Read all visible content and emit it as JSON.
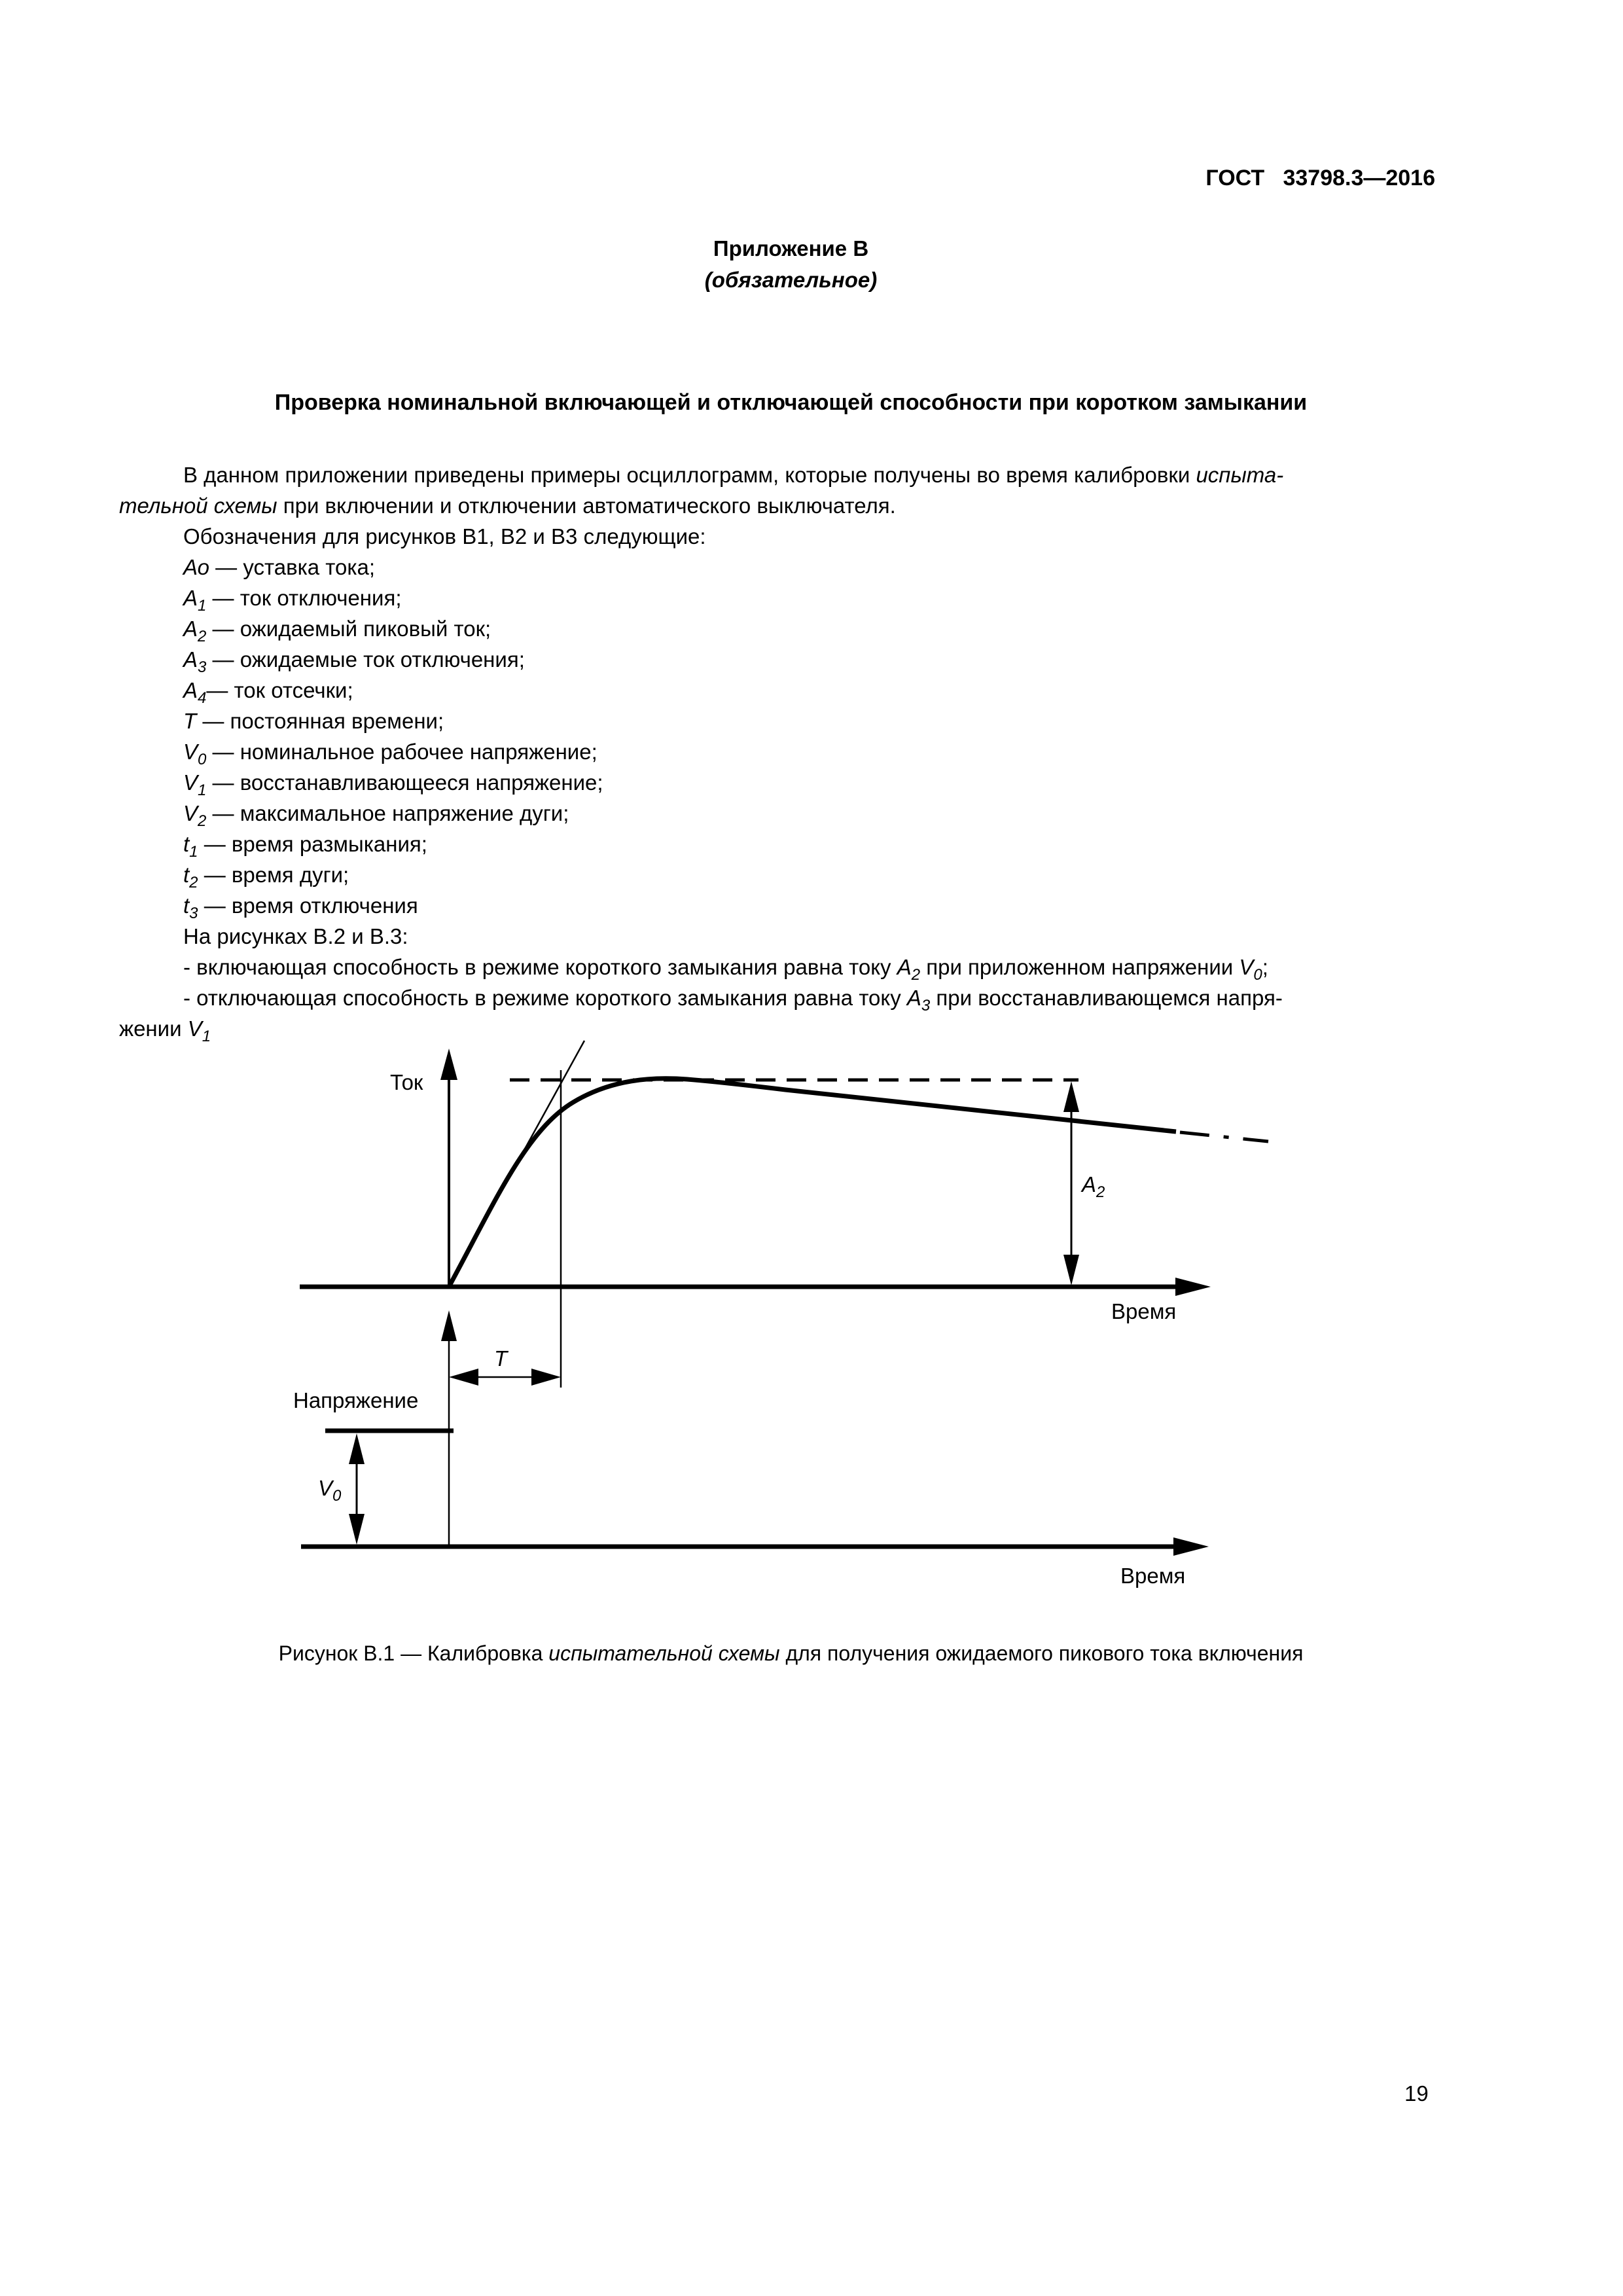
{
  "page": {
    "header": "ГОСТ   33798.3—2016",
    "page_number": "19"
  },
  "appendix": {
    "title": "Приложение В",
    "subtitle": "(обязательное)"
  },
  "heading": "Проверка номинальной включающей и отключающей способности при коротком замыкании",
  "body": {
    "lines": [
      {
        "indent": true,
        "parts": [
          {
            "t": "В данном приложении приведены примеры осциллограмм, которые получены во время калибровки "
          },
          {
            "t": "испыта-",
            "i": 1
          }
        ]
      },
      {
        "indent": false,
        "parts": [
          {
            "t": "тельной схемы",
            "i": 1
          },
          {
            "t": " при включении и отключении автоматического выключателя."
          }
        ]
      },
      {
        "indent": true,
        "parts": [
          {
            "t": "Обозначения для рисунков В1, В2 и В3 следующие:"
          }
        ]
      },
      {
        "indent": true,
        "parts": [
          {
            "t": "Ао",
            "i": 1
          },
          {
            "t": " — уставка тока;"
          }
        ]
      },
      {
        "indent": true,
        "parts": [
          {
            "t": "А",
            "i": 1
          },
          {
            "t": "1",
            "i": 1,
            "s": 1
          },
          {
            "t": " — ток отключения;"
          }
        ]
      },
      {
        "indent": true,
        "parts": [
          {
            "t": "А",
            "i": 1
          },
          {
            "t": "2",
            "i": 1,
            "s": 1
          },
          {
            "t": " — ожидаемый пиковый ток;"
          }
        ]
      },
      {
        "indent": true,
        "parts": [
          {
            "t": "А",
            "i": 1
          },
          {
            "t": "3",
            "i": 1,
            "s": 1
          },
          {
            "t": " — ожидаемые ток отключения;"
          }
        ]
      },
      {
        "indent": true,
        "parts": [
          {
            "t": "А",
            "i": 1
          },
          {
            "t": "4",
            "i": 1,
            "s": 1
          },
          {
            "t": "— ток отсечки;"
          }
        ]
      },
      {
        "indent": true,
        "parts": [
          {
            "t": "Т",
            "i": 1
          },
          {
            "t": " — постоянная времени;"
          }
        ]
      },
      {
        "indent": true,
        "parts": [
          {
            "t": "V",
            "i": 1
          },
          {
            "t": "0",
            "i": 1,
            "s": 1
          },
          {
            "t": " — номинальное рабочее напряжение;"
          }
        ]
      },
      {
        "indent": true,
        "parts": [
          {
            "t": "V",
            "i": 1
          },
          {
            "t": "1",
            "i": 1,
            "s": 1
          },
          {
            "t": " — восстанавливающееся напряжение;"
          }
        ]
      },
      {
        "indent": true,
        "parts": [
          {
            "t": "V",
            "i": 1
          },
          {
            "t": "2",
            "i": 1,
            "s": 1
          },
          {
            "t": " — максимальное напряжение дуги;"
          }
        ]
      },
      {
        "indent": true,
        "parts": [
          {
            "t": "t",
            "i": 1
          },
          {
            "t": "1",
            "i": 1,
            "s": 1
          },
          {
            "t": " — время размыкания;"
          }
        ]
      },
      {
        "indent": true,
        "parts": [
          {
            "t": "t",
            "i": 1
          },
          {
            "t": "2",
            "i": 1,
            "s": 1
          },
          {
            "t": " — время дуги;"
          }
        ]
      },
      {
        "indent": true,
        "parts": [
          {
            "t": "t",
            "i": 1
          },
          {
            "t": "3",
            "i": 1,
            "s": 1
          },
          {
            "t": " — время отключения"
          }
        ]
      },
      {
        "indent": true,
        "parts": [
          {
            "t": "На рисунках В.2 и В.3:"
          }
        ]
      },
      {
        "indent": true,
        "parts": [
          {
            "t": "- включающая способность в режиме короткого замыкания равна току "
          },
          {
            "t": "А",
            "i": 1
          },
          {
            "t": "2",
            "i": 1,
            "s": 1
          },
          {
            "t": " при приложенном напряжении "
          },
          {
            "t": "V",
            "i": 1
          },
          {
            "t": "0",
            "i": 1,
            "s": 1
          },
          {
            "t": ";"
          }
        ]
      },
      {
        "indent": true,
        "parts": [
          {
            "t": "- отключающая способность в режиме короткого замыкания равна току "
          },
          {
            "t": "А",
            "i": 1
          },
          {
            "t": "3",
            "i": 1,
            "s": 1
          },
          {
            "t": " при восстанавливающемся напря-"
          }
        ]
      },
      {
        "indent": false,
        "parts": [
          {
            "t": "жении "
          },
          {
            "t": "V",
            "i": 1
          },
          {
            "t": "1",
            "i": 1,
            "s": 1
          }
        ]
      }
    ]
  },
  "figure": {
    "labels": {
      "current_axis": "Ток",
      "time_axis_top": "Время",
      "time_axis_bottom": "Время",
      "voltage_axis": "Напряжение",
      "time_constant": "T",
      "peak_current": {
        "base": "А",
        "sub": "2"
      },
      "rated_voltage": {
        "base": "V",
        "sub": "0"
      }
    },
    "caption": [
      {
        "t": "Рисунок В.1 — Калибровка "
      },
      {
        "t": "испытательной схемы",
        "i": 1
      },
      {
        "t": " для получения ожидаемого пикового тока включения"
      }
    ]
  }
}
